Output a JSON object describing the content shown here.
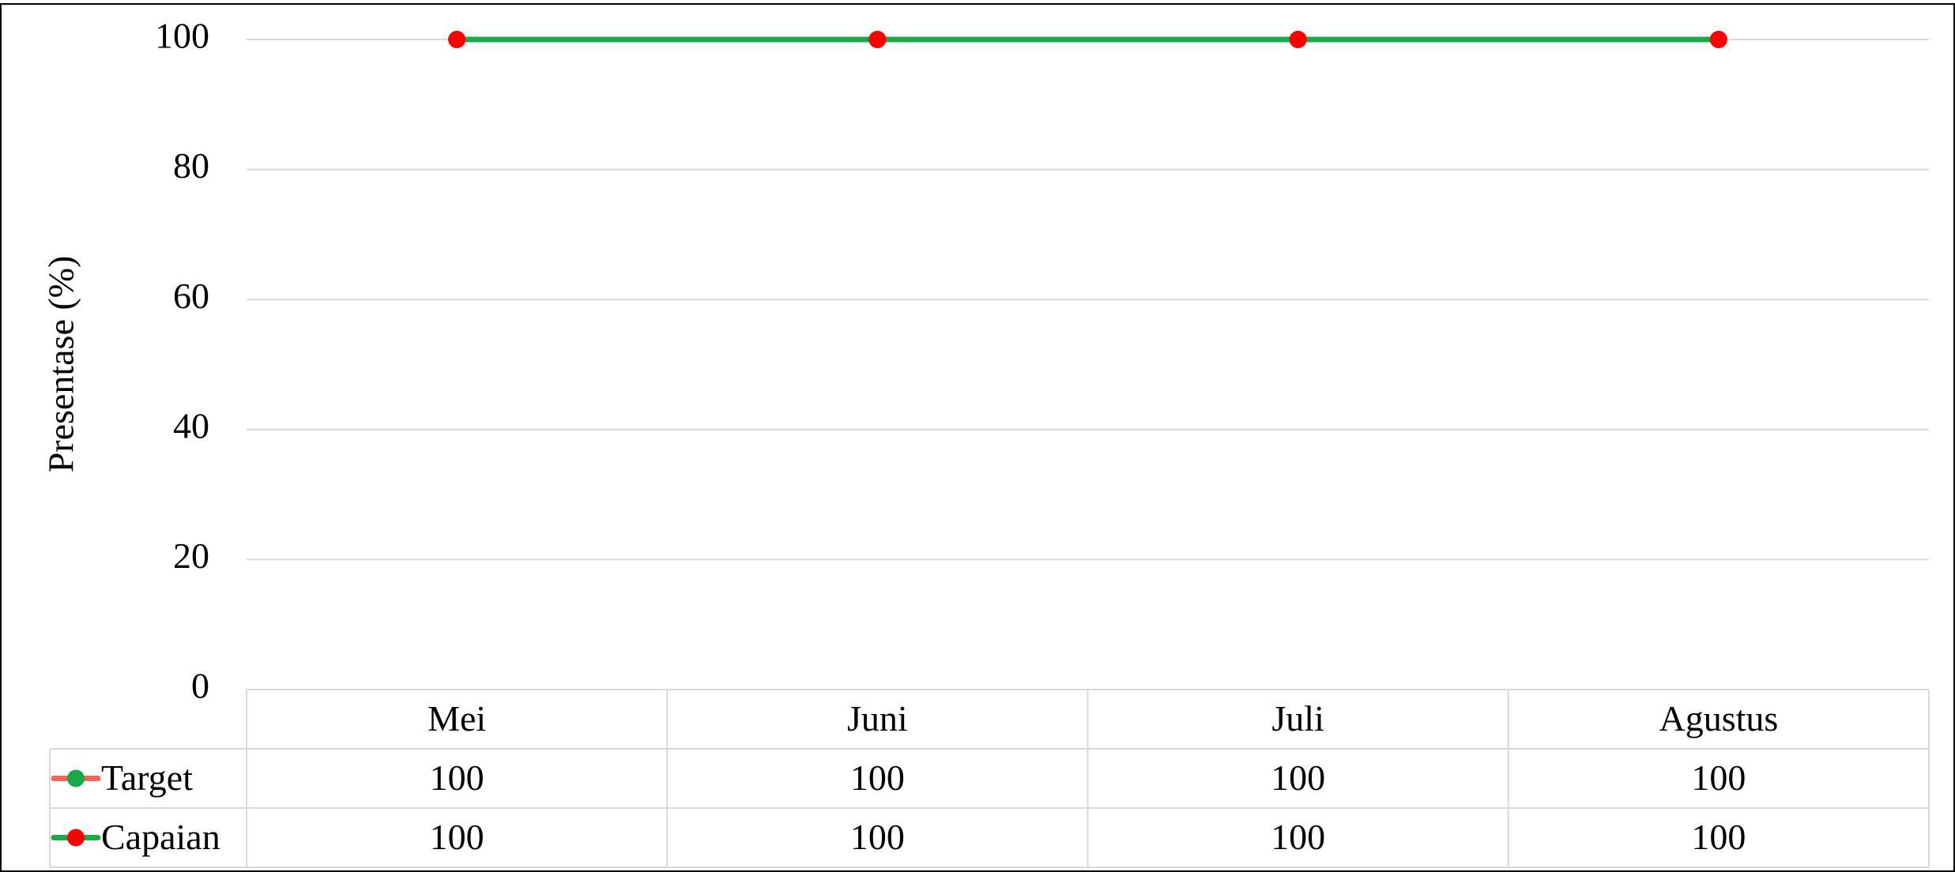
{
  "chart_data": {
    "type": "line",
    "y_label": "Presentase (%)",
    "categories": [
      "Mei",
      "Juni",
      "Juli",
      "Agustus"
    ],
    "series": [
      {
        "name": "Target",
        "color": "#f4645f",
        "marker_color": "#1aa84a",
        "values": [
          100,
          100,
          100,
          100
        ]
      },
      {
        "name": "Capaian",
        "color": "#1aa84a",
        "marker_color": "#ff0000",
        "values": [
          100,
          100,
          100,
          100
        ]
      }
    ],
    "ylim": [
      0,
      100
    ],
    "yticks": [
      0,
      20,
      40,
      60,
      80,
      100
    ],
    "grid": true,
    "data_table": true
  }
}
